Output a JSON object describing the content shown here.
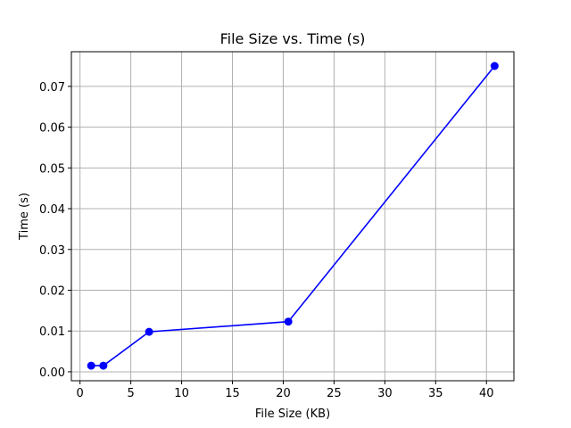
{
  "chart_data": {
    "type": "line",
    "title": "File Size vs. Time (s)",
    "xlabel": "File Size (KB)",
    "ylabel": "Time (s)",
    "xlim": [
      -0.85,
      42.7
    ],
    "ylim": [
      -0.0022,
      0.0785
    ],
    "x_ticks": [
      0,
      5,
      10,
      15,
      20,
      25,
      30,
      35,
      40
    ],
    "x_tick_labels": [
      "0",
      "5",
      "10",
      "15",
      "20",
      "25",
      "30",
      "35",
      "40"
    ],
    "y_ticks": [
      0.0,
      0.01,
      0.02,
      0.03,
      0.04,
      0.05,
      0.06,
      0.07
    ],
    "y_tick_labels": [
      "0.00",
      "0.01",
      "0.02",
      "0.03",
      "0.04",
      "0.05",
      "0.06",
      "0.07"
    ],
    "grid": true,
    "series": [
      {
        "color": "#0000ff",
        "marker": "circle",
        "x": [
          1.1,
          2.3,
          6.8,
          20.5,
          40.8
        ],
        "y": [
          0.0015,
          0.0015,
          0.0098,
          0.0123,
          0.075
        ]
      }
    ]
  }
}
